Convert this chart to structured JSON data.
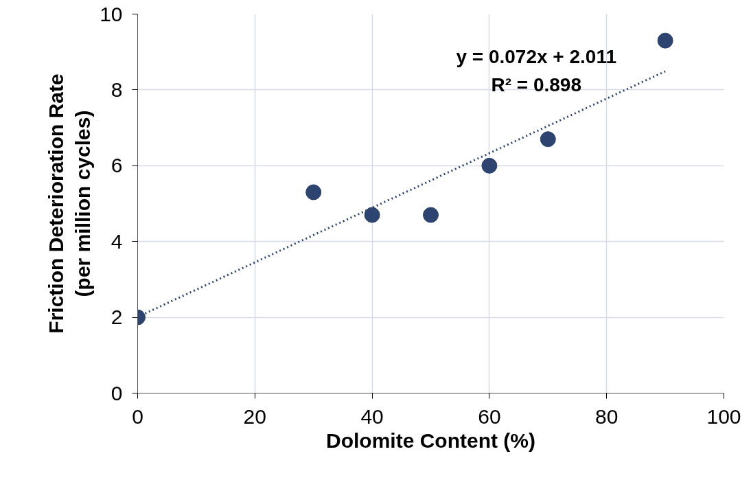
{
  "chart_data": {
    "type": "scatter",
    "xlabel": "Dolomite Content (%)",
    "ylabel": "Friction Deterioration Rate\n(per million cycles)",
    "xlim": [
      0,
      100
    ],
    "ylim": [
      0,
      10
    ],
    "xticks": [
      0,
      20,
      40,
      60,
      80,
      100
    ],
    "yticks": [
      0,
      2,
      4,
      6,
      8,
      10
    ],
    "grid": true,
    "series": [
      {
        "color": "#2e4470",
        "marker": "circle",
        "x": [
          0,
          30,
          40,
          50,
          60,
          70,
          90
        ],
        "values": [
          2.0,
          5.3,
          4.7,
          4.7,
          6.0,
          6.7,
          9.3
        ]
      },
      {
        "type": "line",
        "color": "#2e4470",
        "line_style": "dotted",
        "marker": "none",
        "x": [
          0,
          90
        ],
        "values": [
          2.01,
          8.49
        ]
      }
    ],
    "annotations": [
      "y = 0.072x + 2.011",
      "R² = 0.898"
    ]
  }
}
